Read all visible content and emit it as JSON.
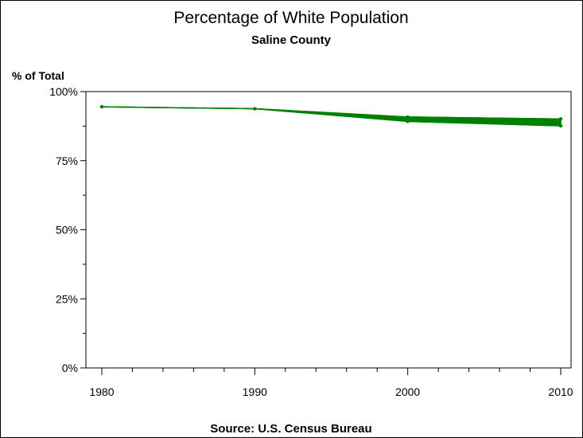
{
  "chart_data": {
    "type": "line",
    "title": "Percentage of White Population",
    "subtitle": "Saline County",
    "ylabel": "% of Total",
    "xlabel": "",
    "footnote": "Source: U.S. Census Bureau",
    "xlim": [
      1980,
      2010
    ],
    "ylim": [
      0,
      100
    ],
    "x_ticks": [
      "1980",
      "1990",
      "2000",
      "2010"
    ],
    "x_tick_values": [
      1980,
      1990,
      2000,
      2010
    ],
    "y_ticks": [
      "0%",
      "25%",
      "50%",
      "75%",
      "100%"
    ],
    "y_tick_values": [
      0,
      25,
      50,
      75,
      100
    ],
    "grid": false,
    "colors": {
      "series": "#008000"
    },
    "series": [
      {
        "values_upper": [
          {
            "x": 1980,
            "y": 94.5
          },
          {
            "x": 1990,
            "y": 93.8
          },
          {
            "x": 2000,
            "y": 90.8
          },
          {
            "x": 2010,
            "y": 90.1
          }
        ],
        "values_lower": [
          {
            "x": 1980,
            "y": 94.5
          },
          {
            "x": 1990,
            "y": 93.8
          },
          {
            "x": 2000,
            "y": 89.2
          },
          {
            "x": 2010,
            "y": 87.6
          }
        ]
      }
    ]
  }
}
